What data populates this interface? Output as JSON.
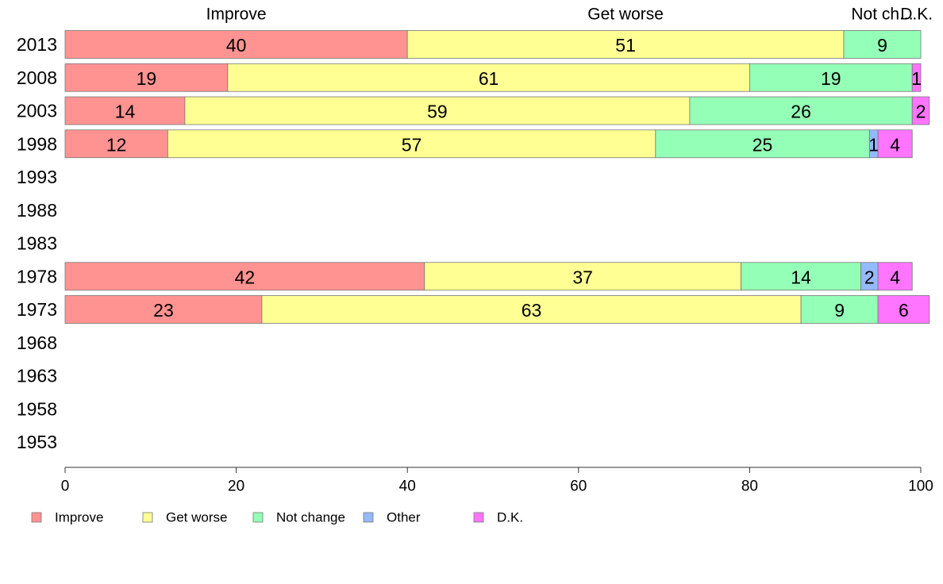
{
  "chart_data": {
    "type": "bar",
    "orientation": "horizontal",
    "stacked": true,
    "categories": [
      "2013",
      "2008",
      "2003",
      "1998",
      "1993",
      "1988",
      "1983",
      "1978",
      "1973",
      "1968",
      "1963",
      "1958",
      "1953"
    ],
    "series": [
      {
        "name": "Improve",
        "color": "#ff9391",
        "values": [
          40,
          19,
          14,
          12,
          null,
          null,
          null,
          42,
          23,
          null,
          null,
          null,
          null
        ]
      },
      {
        "name": "Get worse",
        "color": "#ffff94",
        "values": [
          51,
          61,
          59,
          57,
          null,
          null,
          null,
          37,
          63,
          null,
          null,
          null,
          null
        ]
      },
      {
        "name": "Not change",
        "color": "#94ffb6",
        "values": [
          9,
          19,
          26,
          25,
          null,
          null,
          null,
          14,
          9,
          null,
          null,
          null,
          null
        ]
      },
      {
        "name": "Other",
        "color": "#94b9ff",
        "values": [
          0,
          0,
          0,
          1,
          null,
          null,
          null,
          2,
          0,
          null,
          null,
          null,
          null
        ]
      },
      {
        "name": "D.K.",
        "color": "#ff75ff",
        "values": [
          0,
          1,
          2,
          4,
          null,
          null,
          null,
          4,
          6,
          null,
          null,
          null,
          null
        ]
      }
    ],
    "top_labels": [
      "Improve",
      "Get worse",
      "Not ch...",
      "D.K."
    ],
    "xlim": [
      0,
      100
    ],
    "xticks": [
      0,
      20,
      40,
      60,
      80,
      100
    ],
    "legend_position": "bottom",
    "grid": false,
    "title": "",
    "xlabel": "",
    "ylabel": ""
  }
}
